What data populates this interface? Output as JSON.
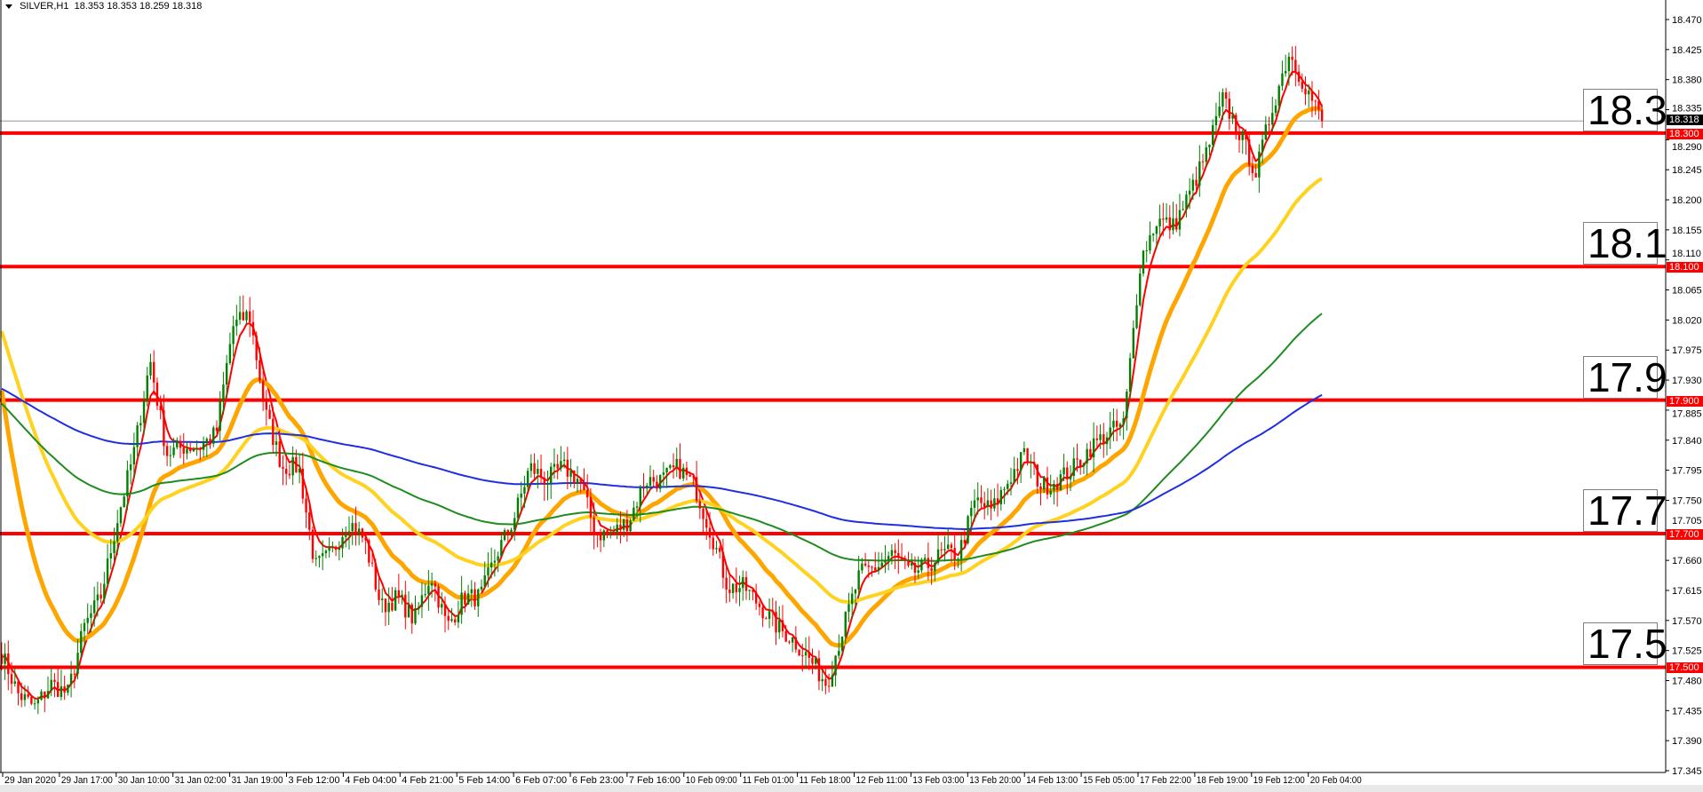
{
  "header": {
    "symbol": "SILVER,H1",
    "ohlc": "18.353 18.353 18.259 18.318"
  },
  "colors": {
    "bull": "#008000",
    "bear": "#ff0000",
    "level": "#ff0000",
    "current_price": "#8c99a6",
    "axis": "#000000"
  },
  "levels": [
    {
      "value": 18.3,
      "label": "18.3",
      "tag": "18.300"
    },
    {
      "value": 18.1,
      "label": "18.1",
      "tag": "18.100"
    },
    {
      "value": 17.9,
      "label": "17.9",
      "tag": "17.900"
    },
    {
      "value": 17.7,
      "label": "17.7",
      "tag": "17.700"
    },
    {
      "value": 17.5,
      "label": "17.5",
      "tag": "17.500"
    }
  ],
  "current_price": {
    "value": 18.318,
    "tag": "18.318"
  },
  "chart_data": {
    "type": "candlestick",
    "title": "SILVER,H1",
    "ylim": [
      17.345,
      18.47
    ],
    "y_ticks": [
      "18.470",
      "18.425",
      "18.380",
      "18.335",
      "18.290",
      "18.245",
      "18.200",
      "18.155",
      "18.110",
      "18.065",
      "18.020",
      "17.975",
      "17.930",
      "17.885",
      "17.840",
      "17.795",
      "17.750",
      "17.705",
      "17.660",
      "17.615",
      "17.570",
      "17.525",
      "17.480",
      "17.435",
      "17.390",
      "17.345"
    ],
    "x_ticks": [
      "29 Jan 2020",
      "29 Jan 17:00",
      "30 Jan 10:00",
      "31 Jan 02:00",
      "31 Jan 19:00",
      "3 Feb 12:00",
      "4 Feb 04:00",
      "4 Feb 21:00",
      "5 Feb 14:00",
      "6 Feb 07:00",
      "6 Feb 23:00",
      "7 Feb 16:00",
      "10 Feb 09:00",
      "11 Feb 01:00",
      "11 Feb 18:00",
      "12 Feb 11:00",
      "13 Feb 03:00",
      "13 Feb 20:00",
      "14 Feb 13:00",
      "15 Feb 05:00",
      "17 Feb 22:00",
      "18 Feb 19:00",
      "19 Feb 12:00",
      "20 Feb 04:00"
    ],
    "approx_closes": [
      17.52,
      17.46,
      17.44,
      17.475,
      17.46,
      17.56,
      17.605,
      17.72,
      17.82,
      17.96,
      17.82,
      17.83,
      17.83,
      17.85,
      18.01,
      18.03,
      17.88,
      17.8,
      17.8,
      17.65,
      17.67,
      17.72,
      17.69,
      17.59,
      17.605,
      17.57,
      17.64,
      17.56,
      17.605,
      17.605,
      17.67,
      17.72,
      17.8,
      17.78,
      17.8,
      17.78,
      17.7,
      17.7,
      17.72,
      17.78,
      17.78,
      17.8,
      17.77,
      17.7,
      17.62,
      17.62,
      17.59,
      17.56,
      17.54,
      17.51,
      17.475,
      17.56,
      17.64,
      17.65,
      17.67,
      17.64,
      17.65,
      17.67,
      17.67,
      17.75,
      17.735,
      17.78,
      17.82,
      17.77,
      17.78,
      17.8,
      17.83,
      17.85,
      17.865,
      18.11,
      18.17,
      18.16,
      18.21,
      18.27,
      18.35,
      18.3,
      18.24,
      18.34,
      18.42,
      18.37,
      18.318
    ],
    "moving_averages": [
      {
        "color": "#ff0000",
        "period": 5,
        "start": 17.52
      },
      {
        "color": "#ffa500",
        "period": 24,
        "start": 17.95
      },
      {
        "color": "#ffd21f",
        "period": 60,
        "start": 18.02
      },
      {
        "color": "#1e8c1e",
        "period": 150,
        "start": 17.9
      },
      {
        "color": "#1f2fe0",
        "period": 300,
        "start": 17.92
      }
    ]
  }
}
